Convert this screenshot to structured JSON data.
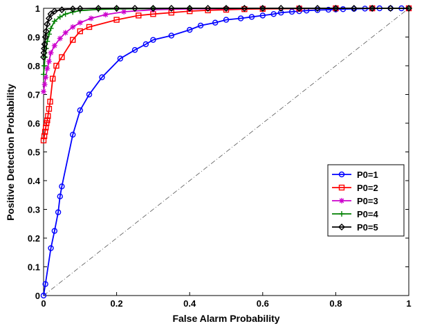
{
  "chart_data": {
    "type": "line",
    "xlabel": "False Alarm Probability",
    "ylabel": "Positive Detection Probability",
    "xlim": [
      0,
      1
    ],
    "ylim": [
      0,
      1
    ],
    "x_ticks": [
      "0",
      "0.2",
      "0.4",
      "0.6",
      "0.8",
      "1"
    ],
    "y_ticks": [
      "0",
      "0.1",
      "0.2",
      "0.3",
      "0.4",
      "0.5",
      "0.6",
      "0.7",
      "0.8",
      "0.9",
      "1"
    ],
    "grid": false,
    "legend_position": "right",
    "reference_line": {
      "x": [
        0,
        1
      ],
      "y": [
        0,
        1
      ],
      "style": "dash-dot",
      "color": "#000000"
    },
    "series": [
      {
        "name": "P0=1",
        "color": "#0000ff",
        "marker": "circle",
        "x": [
          0,
          0.005,
          0.02,
          0.03,
          0.04,
          0.045,
          0.05,
          0.08,
          0.1,
          0.125,
          0.16,
          0.21,
          0.25,
          0.28,
          0.3,
          0.35,
          0.4,
          0.43,
          0.47,
          0.5,
          0.54,
          0.57,
          0.6,
          0.63,
          0.65,
          0.68,
          0.7,
          0.72,
          0.75,
          0.78,
          0.8,
          0.82,
          0.85,
          0.88,
          0.9,
          0.92,
          0.95,
          0.98,
          1.0
        ],
        "y": [
          0,
          0.04,
          0.165,
          0.225,
          0.29,
          0.345,
          0.38,
          0.56,
          0.645,
          0.7,
          0.76,
          0.825,
          0.855,
          0.875,
          0.89,
          0.905,
          0.925,
          0.94,
          0.95,
          0.96,
          0.965,
          0.97,
          0.975,
          0.98,
          0.985,
          0.988,
          0.99,
          0.992,
          0.994,
          0.995,
          0.996,
          0.997,
          0.998,
          0.999,
          0.999,
          1.0,
          1.0,
          1.0,
          1.0
        ]
      },
      {
        "name": "P0=2",
        "color": "#ff0000",
        "marker": "square",
        "x": [
          0,
          0.002,
          0.004,
          0.006,
          0.008,
          0.01,
          0.012,
          0.015,
          0.018,
          0.025,
          0.035,
          0.05,
          0.08,
          0.1,
          0.125,
          0.2,
          0.26,
          0.3,
          0.35,
          0.4,
          0.45,
          0.5,
          0.55,
          0.6,
          0.7,
          0.8,
          0.9,
          1.0
        ],
        "y": [
          0.54,
          0.555,
          0.57,
          0.585,
          0.6,
          0.61,
          0.625,
          0.65,
          0.675,
          0.755,
          0.8,
          0.83,
          0.89,
          0.92,
          0.935,
          0.96,
          0.975,
          0.98,
          0.985,
          0.99,
          0.993,
          0.995,
          0.997,
          0.998,
          0.999,
          1.0,
          1.0,
          1.0
        ]
      },
      {
        "name": "P0=3",
        "color": "#cc00cc",
        "marker": "star",
        "x": [
          0,
          0.003,
          0.006,
          0.01,
          0.015,
          0.02,
          0.03,
          0.045,
          0.06,
          0.08,
          0.1,
          0.13,
          0.17,
          0.22,
          0.3,
          0.4,
          0.5,
          0.6,
          0.7,
          0.8,
          0.9,
          1.0
        ],
        "y": [
          0.71,
          0.735,
          0.76,
          0.79,
          0.815,
          0.845,
          0.87,
          0.895,
          0.915,
          0.935,
          0.95,
          0.965,
          0.978,
          0.988,
          0.995,
          0.998,
          0.999,
          1.0,
          1.0,
          1.0,
          1.0,
          1.0
        ]
      },
      {
        "name": "P0=4",
        "color": "#008000",
        "marker": "plus",
        "x": [
          0,
          0.002,
          0.004,
          0.007,
          0.01,
          0.015,
          0.02,
          0.03,
          0.045,
          0.06,
          0.08,
          0.1,
          0.15,
          0.2,
          0.3,
          0.4,
          0.5,
          0.6,
          0.7,
          0.8,
          0.9,
          1.0
        ],
        "y": [
          0.77,
          0.8,
          0.83,
          0.86,
          0.885,
          0.91,
          0.93,
          0.955,
          0.97,
          0.98,
          0.987,
          0.992,
          0.996,
          0.998,
          0.999,
          1.0,
          1.0,
          1.0,
          1.0,
          1.0,
          1.0,
          1.0
        ]
      },
      {
        "name": "P0=5",
        "color": "#000000",
        "marker": "diamond",
        "x": [
          0,
          0.001,
          0.002,
          0.003,
          0.005,
          0.007,
          0.01,
          0.015,
          0.02,
          0.03,
          0.05,
          0.08,
          0.1,
          0.15,
          0.2,
          0.25,
          0.3,
          0.35,
          0.4,
          0.45,
          0.5,
          0.55,
          0.6,
          0.65,
          0.7,
          0.75,
          0.8,
          0.85,
          0.9,
          0.95,
          1.0
        ],
        "y": [
          0.83,
          0.845,
          0.86,
          0.875,
          0.9,
          0.92,
          0.945,
          0.965,
          0.98,
          0.99,
          0.995,
          0.998,
          0.999,
          1.0,
          1.0,
          1.0,
          1.0,
          1.0,
          1.0,
          1.0,
          1.0,
          1.0,
          1.0,
          1.0,
          1.0,
          1.0,
          1.0,
          1.0,
          1.0,
          1.0,
          1.0
        ]
      }
    ]
  }
}
